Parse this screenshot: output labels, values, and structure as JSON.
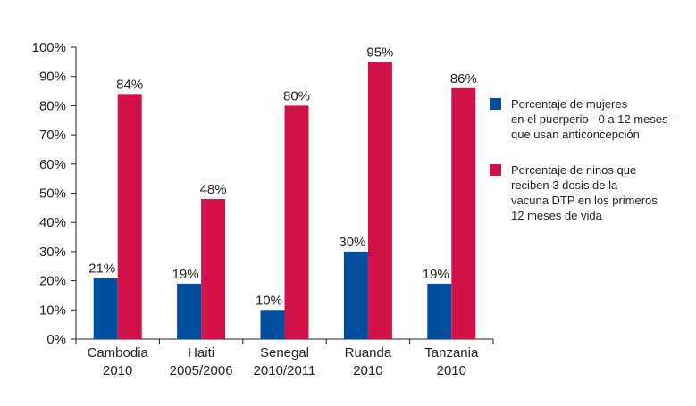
{
  "chart_data": {
    "type": "bar",
    "categories": [
      {
        "name": "Cambodia",
        "year": "2010"
      },
      {
        "name": "Haiti",
        "year": "2005/2006"
      },
      {
        "name": "Senegal",
        "year": "2010/2011"
      },
      {
        "name": "Ruanda",
        "year": "2010"
      },
      {
        "name": "Tanzania",
        "year": "2010"
      }
    ],
    "series": [
      {
        "name": "Porcentaje de mujeres\nen el puerperio –0 a 12 meses–\nque usan anticoncepción",
        "color": "#004f9f",
        "values": [
          21,
          19,
          10,
          30,
          19
        ],
        "labels": [
          "21%",
          "19%",
          "10%",
          "30%",
          "19%"
        ]
      },
      {
        "name": "Porcentaje de ninos que\nreciben 3 dosis de la\nvacuna DTP en los primeros\n12 meses de vida",
        "color": "#d3124a",
        "values": [
          84,
          48,
          80,
          95,
          86
        ],
        "labels": [
          "84%",
          "48%",
          "80%",
          "95%",
          "86%"
        ]
      }
    ],
    "y_ticks": [
      "0%",
      "10%",
      "20%",
      "30%",
      "40%",
      "50%",
      "60%",
      "70%",
      "80%",
      "90%",
      "100%"
    ],
    "ylim": [
      0,
      100
    ],
    "grid": false,
    "legend_position": "right"
  }
}
